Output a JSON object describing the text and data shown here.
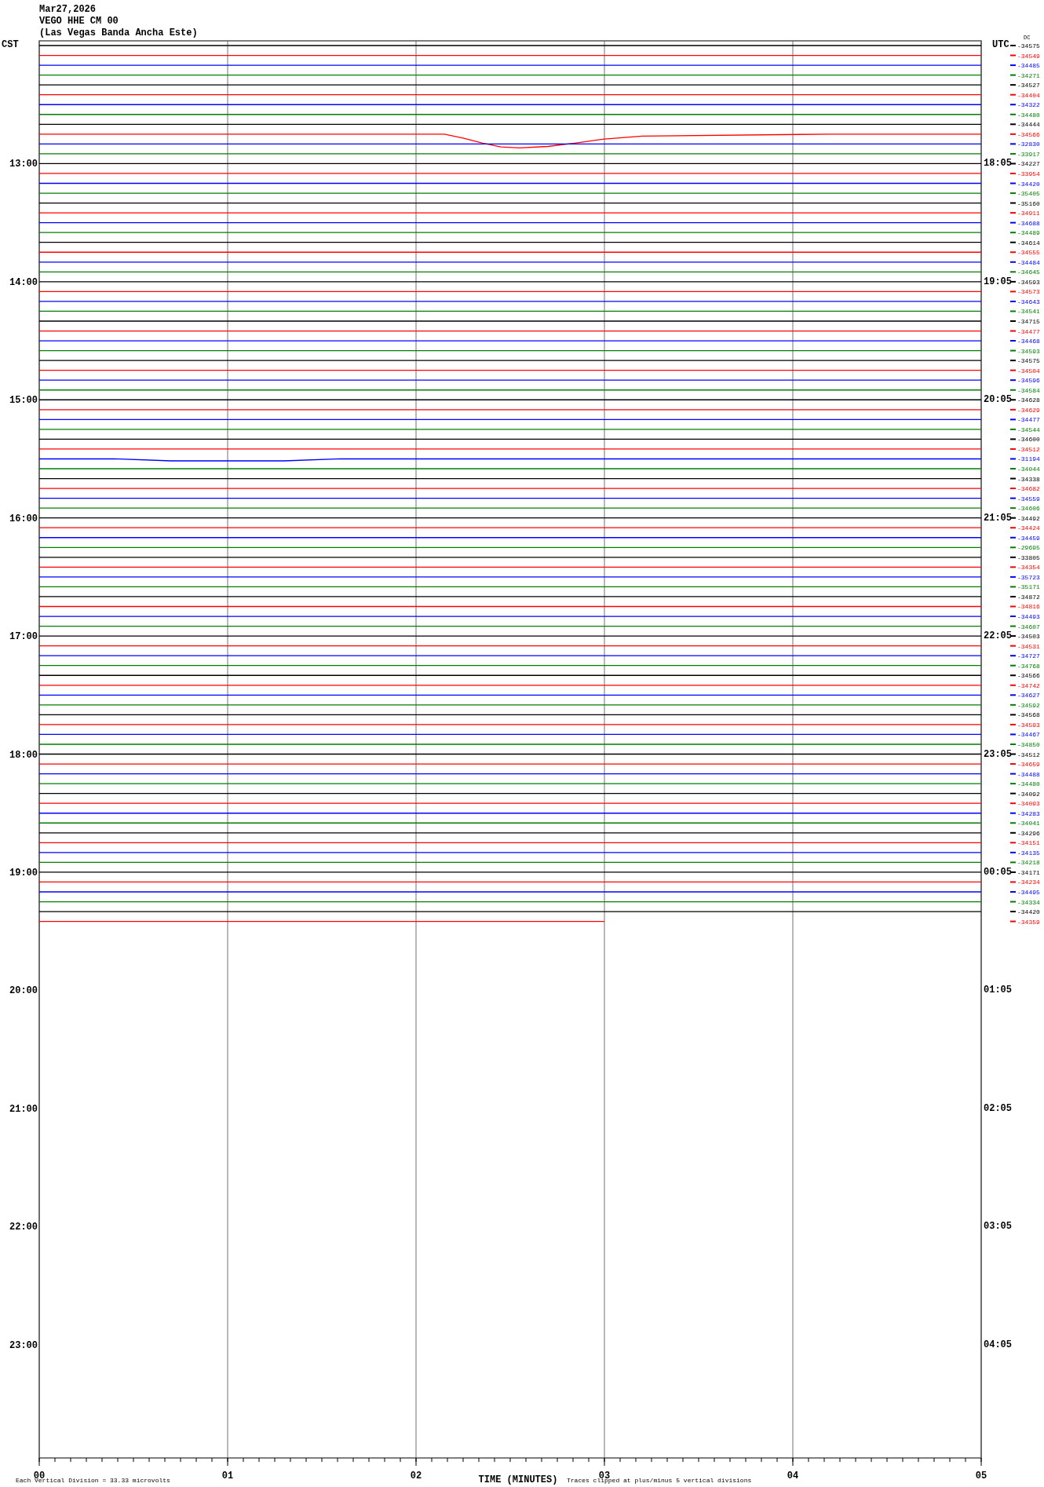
{
  "chart_data": {
    "type": "line",
    "title": "Mar27,2026",
    "subtitle": "VEGO HHE CM 00\n(Las Vegas Banda Ancha Este)",
    "xlabel": "TIME (MINUTES)",
    "ylabel": "CST",
    "y2label": "UTC",
    "legend_title": "DC",
    "legend": "right",
    "annotations": [
      "Each Vertical Division =   33.33 microvolts",
      "Traces clipped at plus/minus 5 vertical divisions"
    ],
    "grid": "x",
    "xlim": [
      0,
      5
    ],
    "xticks": [
      {
        "value": 0,
        "label": "00"
      },
      {
        "value": 1,
        "label": "01"
      },
      {
        "value": 2,
        "label": "02"
      },
      {
        "value": 3,
        "label": "03"
      },
      {
        "value": 4,
        "label": "04"
      },
      {
        "value": 5,
        "label": "05"
      }
    ],
    "ylim": [
      23.96,
      11.96
    ],
    "yticks": [
      {
        "value": 13,
        "label": "13:00"
      },
      {
        "value": 14,
        "label": "14:00"
      },
      {
        "value": 15,
        "label": "15:00"
      },
      {
        "value": 16,
        "label": "16:00"
      },
      {
        "value": 17,
        "label": "17:00"
      },
      {
        "value": 18,
        "label": "18:00"
      },
      {
        "value": 19,
        "label": "19:00"
      },
      {
        "value": 20,
        "label": "20:00"
      },
      {
        "value": 21,
        "label": "21:00"
      },
      {
        "value": 22,
        "label": "22:00"
      },
      {
        "value": 23,
        "label": "23:00"
      }
    ],
    "y2lim": [
      "2026-03-28T05:03",
      "2026-03-27T17:03"
    ],
    "y2ticks": [
      {
        "value": "2026-03-27T18:05",
        "label": "18:05"
      },
      {
        "value": "2026-03-27T19:05",
        "label": "19:05"
      },
      {
        "value": "2026-03-27T20:05",
        "label": "20:05"
      },
      {
        "value": "2026-03-27T21:05",
        "label": "21:05"
      },
      {
        "value": "2026-03-27T22:05",
        "label": "22:05"
      },
      {
        "value": "2026-03-27T23:05",
        "label": "23:05"
      },
      {
        "value": "2026-03-28T00:05",
        "label": "00:05"
      },
      {
        "value": "2026-03-28T01:05",
        "label": "01:05"
      },
      {
        "value": "2026-03-28T02:05",
        "label": "02:05"
      },
      {
        "value": "2026-03-28T03:05",
        "label": "03:05"
      },
      {
        "value": "2026-03-28T04:05",
        "label": "04:05"
      }
    ],
    "x": [
      0,
      5
    ],
    "series": [
      {
        "name": "-34575",
        "color": "#000000",
        "values": [
          12,
          12
        ]
      },
      {
        "name": "-34549",
        "color": "#ff0000",
        "values": [
          12.0833,
          12.0833
        ]
      },
      {
        "name": "-34485",
        "color": "#0000ff",
        "values": [
          12.1667,
          12.1667
        ]
      },
      {
        "name": "-34271",
        "color": "#007f00",
        "values": [
          12.25,
          12.25
        ]
      },
      {
        "name": "-34527",
        "color": "#000000",
        "values": [
          12.3333,
          12.3333
        ]
      },
      {
        "name": "-34404",
        "color": "#ff0000",
        "values": [
          12.4167,
          12.4167
        ]
      },
      {
        "name": "-34322",
        "color": "#0000ff",
        "values": [
          12.5,
          12.5
        ]
      },
      {
        "name": "-34480",
        "color": "#007f00",
        "values": [
          12.5833,
          12.5833
        ]
      },
      {
        "name": "-34444",
        "color": "#000000",
        "values": [
          12.6667,
          12.6667
        ]
      },
      {
        "name": "-34566",
        "color": "#ff0000",
        "x": [
          0,
          2.15,
          2.25,
          2.35,
          2.45,
          2.55,
          2.7,
          2.85,
          3.0,
          3.2,
          4.2,
          5
        ],
        "values": [
          12.75,
          12.75,
          12.7833,
          12.825,
          12.8583,
          12.8667,
          12.8542,
          12.825,
          12.7917,
          12.7667,
          12.75,
          12.75
        ]
      },
      {
        "name": "-32830",
        "color": "#0000ff",
        "values": [
          12.8333,
          12.8333
        ]
      },
      {
        "name": "-33917",
        "color": "#007f00",
        "values": [
          12.9167,
          12.9167
        ]
      },
      {
        "name": "-34227",
        "color": "#000000",
        "values": [
          13,
          13
        ]
      },
      {
        "name": "-33954",
        "color": "#ff0000",
        "values": [
          13.0833,
          13.0833
        ]
      },
      {
        "name": "-34420",
        "color": "#0000ff",
        "values": [
          13.1667,
          13.1667
        ]
      },
      {
        "name": "-35405",
        "color": "#007f00",
        "values": [
          13.25,
          13.25
        ]
      },
      {
        "name": "-35160",
        "color": "#000000",
        "values": [
          13.3333,
          13.3333
        ]
      },
      {
        "name": "-34911",
        "color": "#ff0000",
        "values": [
          13.4167,
          13.4167
        ]
      },
      {
        "name": "-34688",
        "color": "#0000ff",
        "values": [
          13.5,
          13.5
        ]
      },
      {
        "name": "-34489",
        "color": "#007f00",
        "values": [
          13.5833,
          13.5833
        ]
      },
      {
        "name": "-34614",
        "color": "#000000",
        "values": [
          13.6667,
          13.6667
        ]
      },
      {
        "name": "-34555",
        "color": "#ff0000",
        "values": [
          13.75,
          13.75
        ]
      },
      {
        "name": "-34484",
        "color": "#0000ff",
        "values": [
          13.8333,
          13.8333
        ]
      },
      {
        "name": "-34645",
        "color": "#007f00",
        "values": [
          13.9167,
          13.9167
        ]
      },
      {
        "name": "-34593",
        "color": "#000000",
        "values": [
          14,
          14
        ]
      },
      {
        "name": "-34573",
        "color": "#ff0000",
        "values": [
          14.0833,
          14.0833
        ]
      },
      {
        "name": "-34643",
        "color": "#0000ff",
        "values": [
          14.1667,
          14.1667
        ]
      },
      {
        "name": "-34541",
        "color": "#007f00",
        "values": [
          14.25,
          14.25
        ]
      },
      {
        "name": "-34715",
        "color": "#000000",
        "values": [
          14.3333,
          14.3333
        ]
      },
      {
        "name": "-34477",
        "color": "#ff0000",
        "values": [
          14.4167,
          14.4167
        ]
      },
      {
        "name": "-34468",
        "color": "#0000ff",
        "values": [
          14.5,
          14.5
        ]
      },
      {
        "name": "-34593",
        "color": "#007f00",
        "values": [
          14.5833,
          14.5833
        ]
      },
      {
        "name": "-34575",
        "color": "#000000",
        "values": [
          14.6667,
          14.6667
        ]
      },
      {
        "name": "-34504",
        "color": "#ff0000",
        "values": [
          14.75,
          14.75
        ]
      },
      {
        "name": "-34596",
        "color": "#0000ff",
        "values": [
          14.8333,
          14.8333
        ]
      },
      {
        "name": "-34584",
        "color": "#007f00",
        "values": [
          14.9167,
          14.9167
        ]
      },
      {
        "name": "-34628",
        "color": "#000000",
        "values": [
          15,
          15
        ]
      },
      {
        "name": "-34629",
        "color": "#ff0000",
        "values": [
          15.0833,
          15.0833
        ]
      },
      {
        "name": "-34477",
        "color": "#0000ff",
        "values": [
          15.1667,
          15.1667
        ]
      },
      {
        "name": "-34544",
        "color": "#007f00",
        "values": [
          15.25,
          15.25
        ]
      },
      {
        "name": "-34600",
        "color": "#000000",
        "values": [
          15.3333,
          15.3333
        ]
      },
      {
        "name": "-34512",
        "color": "#ff0000",
        "values": [
          15.4167,
          15.4167
        ]
      },
      {
        "name": "-31194",
        "color": "#0000ff",
        "x": [
          0,
          0.4,
          0.7,
          1.0,
          1.3,
          1.6,
          5
        ],
        "values": [
          15.5,
          15.5,
          15.5167,
          15.5167,
          15.5167,
          15.5,
          15.5
        ]
      },
      {
        "name": "-34044",
        "color": "#007f00",
        "values": [
          15.5833,
          15.5833
        ]
      },
      {
        "name": "-34338",
        "color": "#000000",
        "values": [
          15.6667,
          15.6667
        ]
      },
      {
        "name": "-34682",
        "color": "#ff0000",
        "values": [
          15.75,
          15.75
        ]
      },
      {
        "name": "-34559",
        "color": "#0000ff",
        "values": [
          15.8333,
          15.8333
        ]
      },
      {
        "name": "-34606",
        "color": "#007f00",
        "values": [
          15.9167,
          15.9167
        ]
      },
      {
        "name": "-34492",
        "color": "#000000",
        "values": [
          16,
          16
        ]
      },
      {
        "name": "-34424",
        "color": "#ff0000",
        "values": [
          16.0833,
          16.0833
        ]
      },
      {
        "name": "-34459",
        "color": "#0000ff",
        "values": [
          16.1667,
          16.1667
        ]
      },
      {
        "name": "-29695",
        "color": "#007f00",
        "values": [
          16.25,
          16.25
        ]
      },
      {
        "name": "-33805",
        "color": "#000000",
        "values": [
          16.3333,
          16.3333
        ]
      },
      {
        "name": "-34354",
        "color": "#ff0000",
        "values": [
          16.4167,
          16.4167
        ]
      },
      {
        "name": "-35723",
        "color": "#0000ff",
        "values": [
          16.5,
          16.5
        ]
      },
      {
        "name": "-35171",
        "color": "#007f00",
        "values": [
          16.5833,
          16.5833
        ]
      },
      {
        "name": "-34872",
        "color": "#000000",
        "values": [
          16.6667,
          16.6667
        ]
      },
      {
        "name": "-34816",
        "color": "#ff0000",
        "values": [
          16.75,
          16.75
        ]
      },
      {
        "name": "-34493",
        "color": "#0000ff",
        "values": [
          16.8333,
          16.8333
        ]
      },
      {
        "name": "-34607",
        "color": "#007f00",
        "values": [
          16.9167,
          16.9167
        ]
      },
      {
        "name": "-34503",
        "color": "#000000",
        "values": [
          17,
          17
        ]
      },
      {
        "name": "-34531",
        "color": "#ff0000",
        "values": [
          17.0833,
          17.0833
        ]
      },
      {
        "name": "-34727",
        "color": "#0000ff",
        "values": [
          17.1667,
          17.1667
        ]
      },
      {
        "name": "-34768",
        "color": "#007f00",
        "values": [
          17.25,
          17.25
        ]
      },
      {
        "name": "-34566",
        "color": "#000000",
        "values": [
          17.3333,
          17.3333
        ]
      },
      {
        "name": "-34742",
        "color": "#ff0000",
        "values": [
          17.4167,
          17.4167
        ]
      },
      {
        "name": "-34627",
        "color": "#0000ff",
        "values": [
          17.5,
          17.5
        ]
      },
      {
        "name": "-34592",
        "color": "#007f00",
        "values": [
          17.5833,
          17.5833
        ]
      },
      {
        "name": "-34568",
        "color": "#000000",
        "values": [
          17.6667,
          17.6667
        ]
      },
      {
        "name": "-34593",
        "color": "#ff0000",
        "values": [
          17.75,
          17.75
        ]
      },
      {
        "name": "-34467",
        "color": "#0000ff",
        "values": [
          17.8333,
          17.8333
        ]
      },
      {
        "name": "-34850",
        "color": "#007f00",
        "values": [
          17.9167,
          17.9167
        ]
      },
      {
        "name": "-34512",
        "color": "#000000",
        "values": [
          18,
          18
        ]
      },
      {
        "name": "-34659",
        "color": "#ff0000",
        "values": [
          18.0833,
          18.0833
        ]
      },
      {
        "name": "-34488",
        "color": "#0000ff",
        "values": [
          18.1667,
          18.1667
        ]
      },
      {
        "name": "-34480",
        "color": "#007f00",
        "values": [
          18.25,
          18.25
        ]
      },
      {
        "name": "-34092",
        "color": "#000000",
        "values": [
          18.3333,
          18.3333
        ]
      },
      {
        "name": "-34093",
        "color": "#ff0000",
        "values": [
          18.4167,
          18.4167
        ]
      },
      {
        "name": "-34283",
        "color": "#0000ff",
        "values": [
          18.5,
          18.5
        ]
      },
      {
        "name": "-34041",
        "color": "#007f00",
        "values": [
          18.5833,
          18.5833
        ]
      },
      {
        "name": "-34296",
        "color": "#000000",
        "values": [
          18.6667,
          18.6667
        ]
      },
      {
        "name": "-34151",
        "color": "#ff0000",
        "values": [
          18.75,
          18.75
        ]
      },
      {
        "name": "-34135",
        "color": "#0000ff",
        "values": [
          18.8333,
          18.8333
        ]
      },
      {
        "name": "-34218",
        "color": "#007f00",
        "values": [
          18.9167,
          18.9167
        ]
      },
      {
        "name": "-34171",
        "color": "#000000",
        "values": [
          19,
          19
        ]
      },
      {
        "name": "-34234",
        "color": "#ff0000",
        "values": [
          19.0833,
          19.0833
        ]
      },
      {
        "name": "-34495",
        "color": "#0000ff",
        "values": [
          19.1667,
          19.1667
        ]
      },
      {
        "name": "-34334",
        "color": "#007f00",
        "values": [
          19.25,
          19.25
        ]
      },
      {
        "name": "-34420",
        "color": "#000000",
        "values": [
          19.3333,
          19.3333
        ]
      },
      {
        "name": "-34359",
        "color": "#ff0000",
        "x": [
          0,
          3
        ],
        "values": [
          19.4167,
          19.4167
        ]
      }
    ]
  }
}
